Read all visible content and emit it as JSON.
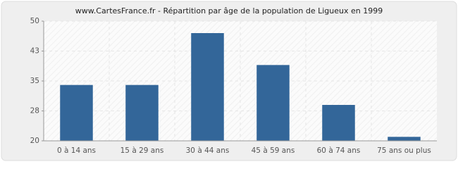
{
  "chart_data": {
    "type": "bar",
    "title": "www.CartesFrance.fr - Répartition par âge de la population de Ligueux en 1999",
    "categories": [
      "0 à 14 ans",
      "15 à 29 ans",
      "30 à 44 ans",
      "45 à 59 ans",
      "60 à 74 ans",
      "75 ans ou plus"
    ],
    "values": [
      34,
      34,
      47,
      39,
      29,
      21
    ],
    "color": "#336699",
    "ylim": [
      20,
      50
    ],
    "yticks": [
      20,
      {
        "value": 27.5,
        "label": "28"
      },
      35,
      {
        "value": 42.5,
        "label": "43"
      },
      50
    ],
    "grid": true
  }
}
